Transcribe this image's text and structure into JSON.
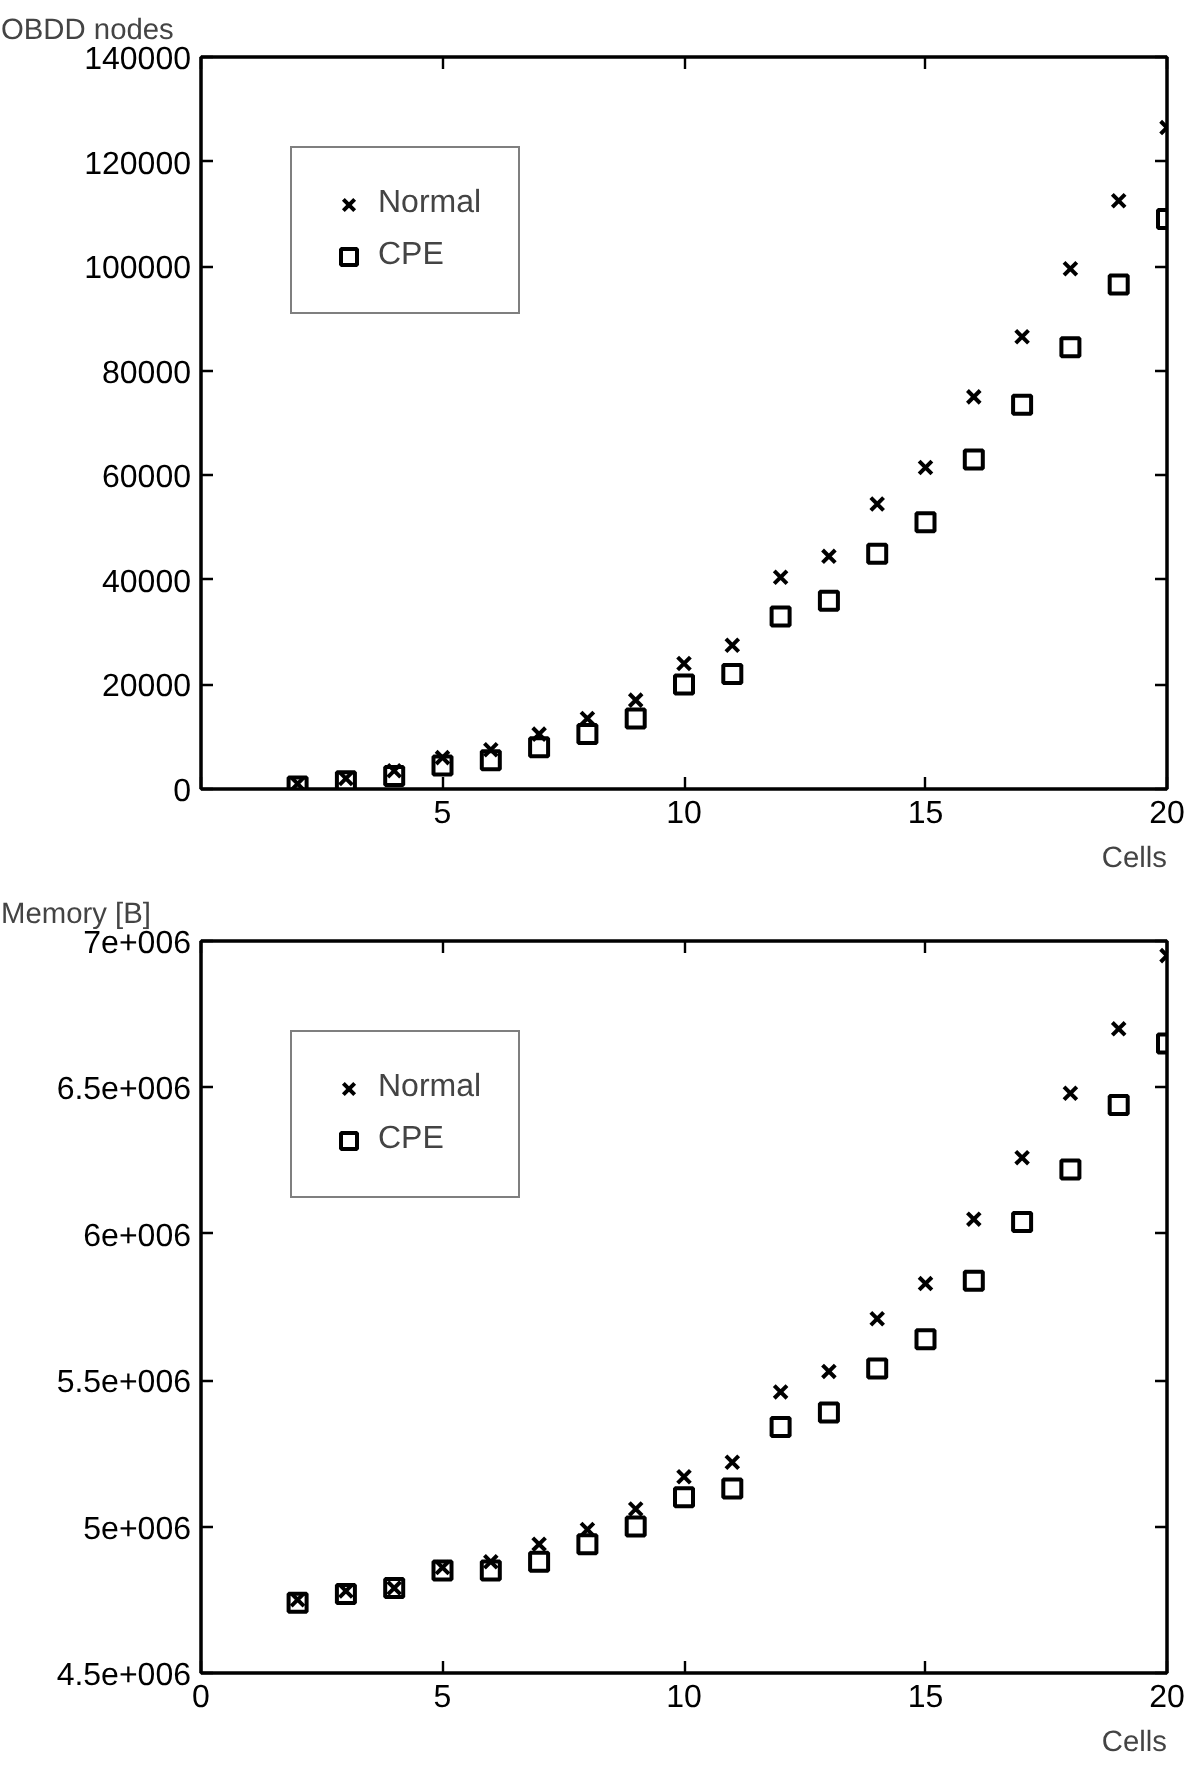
{
  "chart_data": [
    {
      "type": "scatter",
      "xlabel": "Cells",
      "ylabel": "OBDD nodes",
      "x": [
        2,
        3,
        4,
        5,
        6,
        7,
        8,
        9,
        10,
        11,
        12,
        13,
        14,
        15,
        16,
        17,
        18,
        19,
        20
      ],
      "series": [
        {
          "name": "Normal",
          "color": "#000000",
          "marker": "cross",
          "values": [
            1000,
            2000,
            3500,
            6000,
            7500,
            10500,
            13500,
            17000,
            24000,
            27500,
            40500,
            44500,
            54500,
            61500,
            75000,
            86500,
            99500,
            112500,
            126500
          ]
        },
        {
          "name": "CPE",
          "color": "#000000",
          "marker": "square",
          "values": [
            500,
            1500,
            2500,
            4500,
            5500,
            8000,
            10500,
            13500,
            20000,
            22000,
            33000,
            36000,
            45000,
            51000,
            63000,
            73500,
            84500,
            96500,
            109000
          ]
        }
      ],
      "xlim": [
        0,
        20
      ],
      "xticks": [
        {
          "value": 0,
          "label": null
        },
        5,
        10,
        15,
        20
      ],
      "ylim": [
        0,
        140000
      ],
      "yticks": [
        0,
        20000,
        40000,
        60000,
        80000,
        100000,
        120000,
        140000
      ],
      "grid": false,
      "legend": "top left"
    },
    {
      "type": "scatter",
      "xlabel": "Cells",
      "ylabel": "Memory [B]",
      "x": [
        2,
        3,
        4,
        5,
        6,
        7,
        8,
        9,
        10,
        11,
        12,
        13,
        14,
        15,
        16,
        17,
        18,
        19,
        20
      ],
      "series": [
        {
          "name": "Normal",
          "color": "#000000",
          "marker": "cross",
          "values": [
            4750000,
            4780000,
            4790000,
            4860000,
            4880000,
            4940000,
            4990000,
            5060000,
            5170000,
            5220000,
            5460000,
            5530000,
            5710000,
            5830000,
            6050000,
            6260000,
            6480000,
            6700000,
            6950000
          ]
        },
        {
          "name": "CPE",
          "color": "#000000",
          "marker": "square",
          "values": [
            4740000,
            4770000,
            4790000,
            4850000,
            4850000,
            4880000,
            4940000,
            5000000,
            5100000,
            5130000,
            5340000,
            5390000,
            5540000,
            5640000,
            5840000,
            6040000,
            6220000,
            6440000,
            6650000
          ]
        }
      ],
      "xlim": [
        0,
        20
      ],
      "xticks": [
        0,
        5,
        10,
        15,
        20
      ],
      "ylim": [
        4500000,
        7000000
      ],
      "yticks": [
        {
          "value": 4500000,
          "label": "4.5e+006"
        },
        {
          "value": 5000000,
          "label": "5e+006"
        },
        {
          "value": 5500000,
          "label": "5.5e+006"
        },
        {
          "value": 6000000,
          "label": "6e+006"
        },
        {
          "value": 6500000,
          "label": "6.5e+006"
        },
        {
          "value": 7000000,
          "label": "7e+006"
        }
      ],
      "grid": false,
      "legend": "top left"
    }
  ]
}
